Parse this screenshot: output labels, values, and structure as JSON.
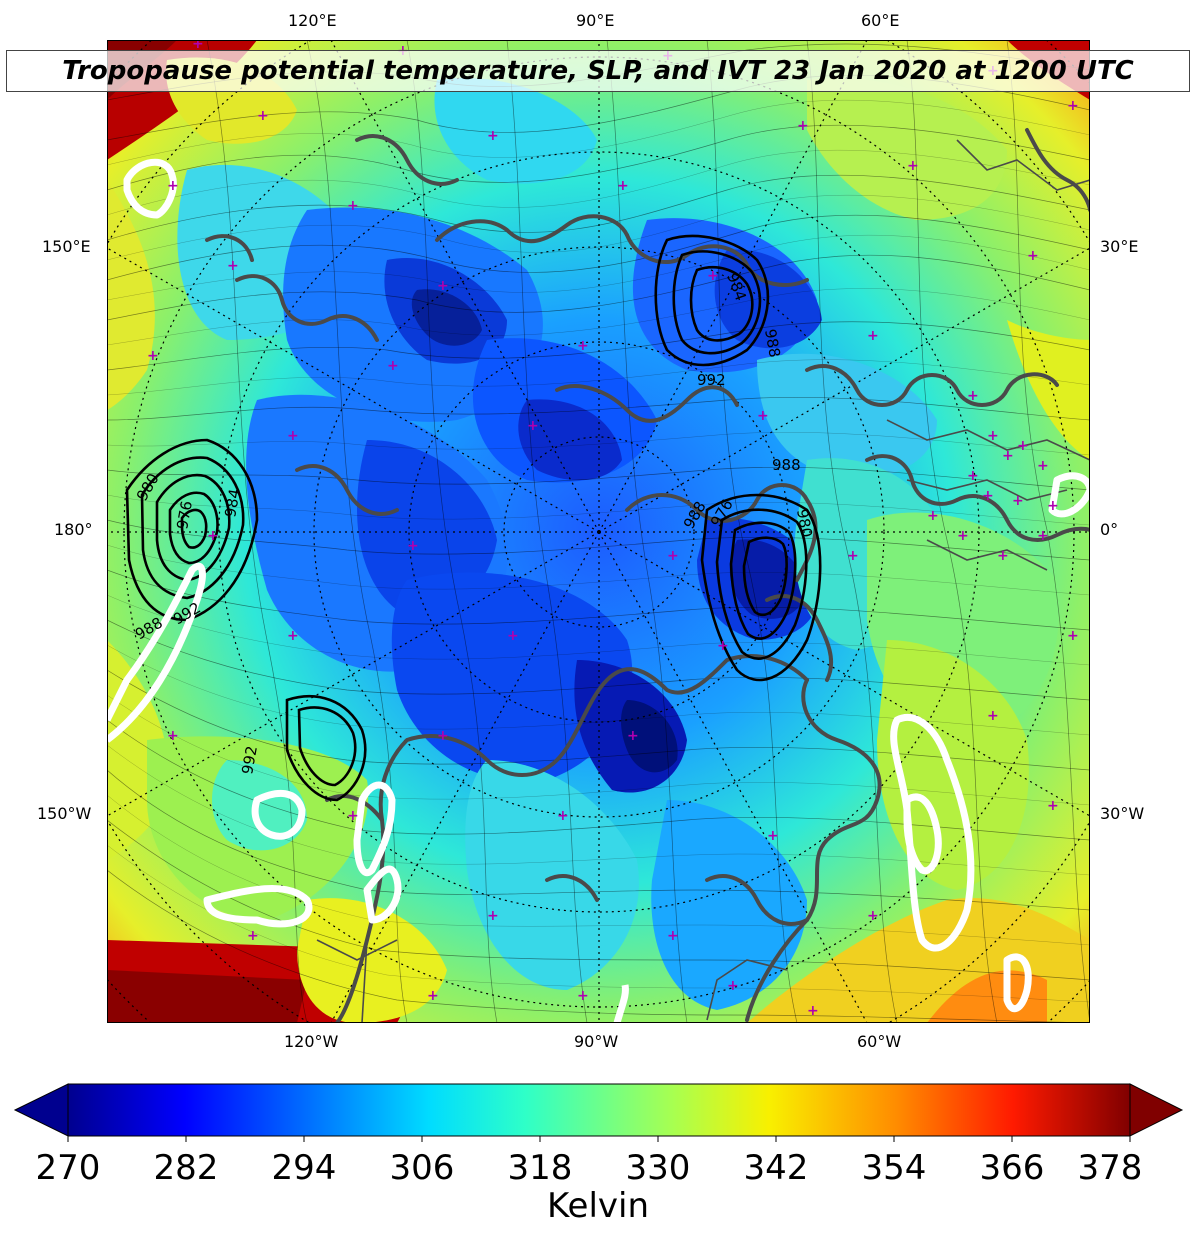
{
  "title": "Tropopause potential temperature, SLP, and IVT 23 Jan 2020 at 1200 UTC",
  "ticks": {
    "top": [
      "120°E",
      "90°E",
      "60°E"
    ],
    "bottom": [
      "120°W",
      "90°W",
      "60°W"
    ],
    "left": [
      "150°E",
      "180°",
      "150°W"
    ],
    "right": [
      "30°E",
      "0°",
      "30°W"
    ]
  },
  "slp_labels": [
    "980",
    "976",
    "984",
    "988",
    "992",
    "984",
    "988",
    "992",
    "988",
    "980",
    "976",
    "988",
    "992"
  ],
  "colorbar": {
    "label": "Kelvin",
    "ticks": [
      "270",
      "282",
      "294",
      "306",
      "318",
      "330",
      "342",
      "354",
      "366",
      "378"
    ],
    "min": 270,
    "max": 378,
    "colormap": "jet",
    "extend": "both"
  },
  "colors": {
    "slp_contour": "#000000",
    "ivt_contour": "#ffffff",
    "coastline": "#4a4a4a",
    "station_marker": "#b000b0"
  }
}
